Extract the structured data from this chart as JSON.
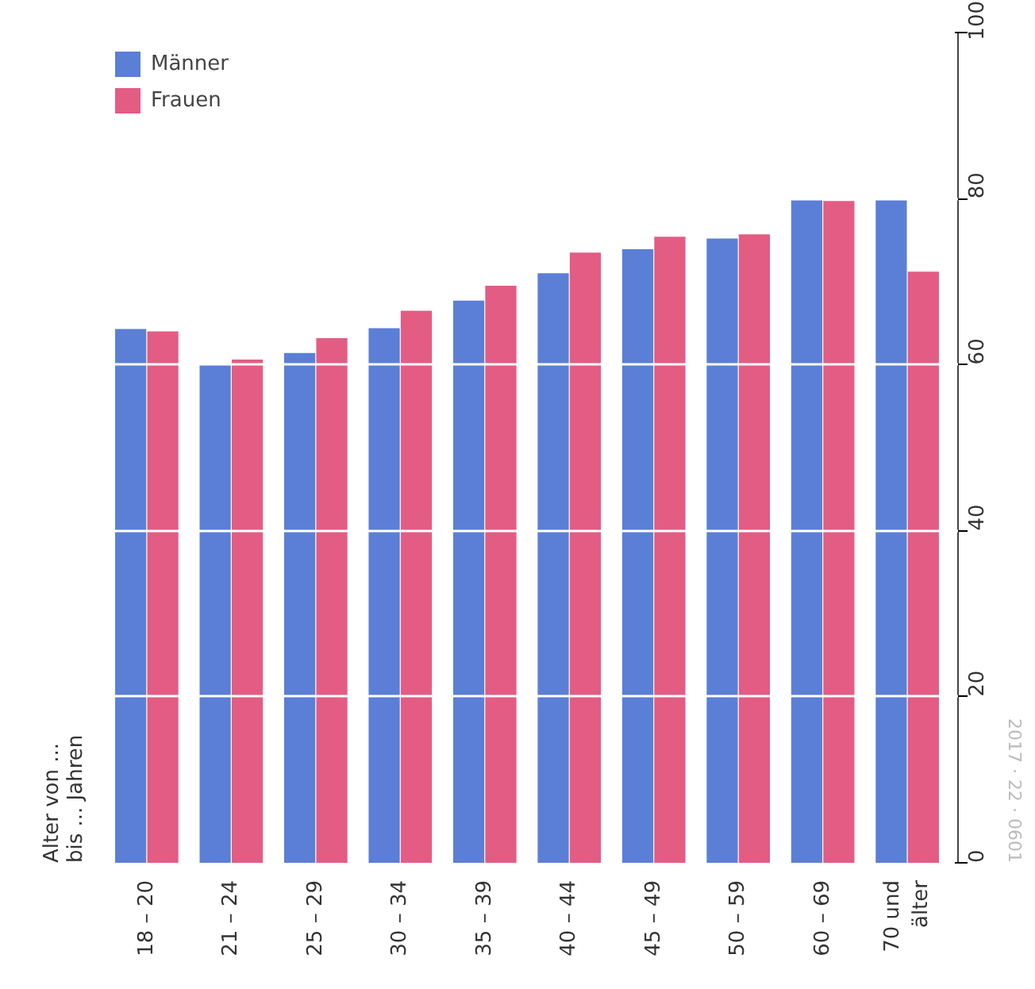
{
  "chart_data": {
    "type": "bar",
    "categories": [
      "18 – 20",
      "21 – 24",
      "25 – 29",
      "30 – 34",
      "35 – 39",
      "40 – 44",
      "45 – 49",
      "50 – 59",
      "60 – 69",
      "70 und\nälter"
    ],
    "series": [
      {
        "name": "Männer",
        "color": "#5b7fd6",
        "values": [
          64.3,
          60.0,
          61.4,
          64.4,
          67.7,
          71.0,
          73.9,
          75.2,
          80.0,
          80.0
        ]
      },
      {
        "name": "Frauen",
        "color": "#e35c84",
        "values": [
          64.0,
          60.6,
          63.2,
          66.5,
          69.5,
          73.5,
          75.4,
          75.7,
          79.7,
          71.2
        ]
      }
    ],
    "ylim": [
      0,
      100
    ],
    "yticks": [
      0,
      20,
      40,
      60,
      80,
      100
    ],
    "grid": "y",
    "legend": "top left",
    "annotations": [
      "Alter von ...\nbis ... Jahren",
      "2017 · 22 · 0601"
    ]
  }
}
